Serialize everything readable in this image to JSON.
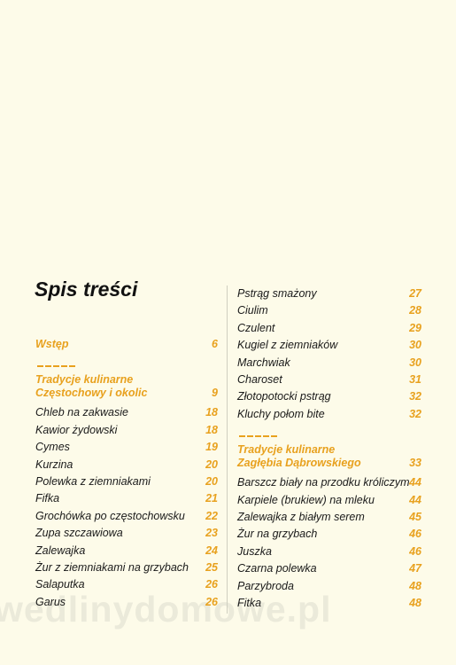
{
  "title": "Spis treści",
  "columns": [
    {
      "items": [
        {
          "intro": "Wstęp",
          "page": 6
        },
        {
          "heading": [
            "Tradycje kulinarne",
            "Częstochowy i okolic"
          ],
          "page": 9
        },
        {
          "title": "Chleb na zakwasie",
          "page": 18
        },
        {
          "title": "Kawior żydowski",
          "page": 18
        },
        {
          "title": "Cymes",
          "page": 19
        },
        {
          "title": "Kurzina",
          "page": 20
        },
        {
          "title": "Polewka z ziemniakami",
          "page": 20
        },
        {
          "title": "Fifka",
          "page": 21
        },
        {
          "title": "Grochówka po częstochowsku",
          "page": 22
        },
        {
          "title": "Zupa szczawiowa",
          "page": 23
        },
        {
          "title": "Zalewajka",
          "page": 24
        },
        {
          "title": "Żur z ziemniakami na grzybach",
          "page": 25
        },
        {
          "title": "Salaputka",
          "page": 26
        },
        {
          "title": "Garus",
          "page": 26
        }
      ]
    },
    {
      "items": [
        {
          "title": "Pstrąg smażony",
          "page": 27
        },
        {
          "title": "Ciulim",
          "page": 28
        },
        {
          "title": "Czulent",
          "page": 29
        },
        {
          "title": "Kugiel z ziemniaków",
          "page": 30
        },
        {
          "title": "Marchwiak",
          "page": 30
        },
        {
          "title": "Charoset",
          "page": 31
        },
        {
          "title": "Złotopotocki pstrąg",
          "page": 32
        },
        {
          "title": "Kluchy połom bite",
          "page": 32
        },
        {
          "heading": [
            "Tradycje kulinarne",
            "Zagłębia Dąbrowskiego"
          ],
          "page": 33
        },
        {
          "title": "Barszcz biały na przodku króliczym",
          "page": 44
        },
        {
          "title": "Karpiele (brukiew) na mleku",
          "page": 44
        },
        {
          "title": "Zalewajka z białym serem",
          "page": 45
        },
        {
          "title": "Żur na grzybach",
          "page": 46
        },
        {
          "title": "Juszka",
          "page": 46
        },
        {
          "title": "Czarna polewka",
          "page": 47
        },
        {
          "title": "Parzybroda",
          "page": 48
        },
        {
          "title": "Fitka",
          "page": 48
        }
      ]
    }
  ],
  "watermark": "wedlinydomowe.pl"
}
